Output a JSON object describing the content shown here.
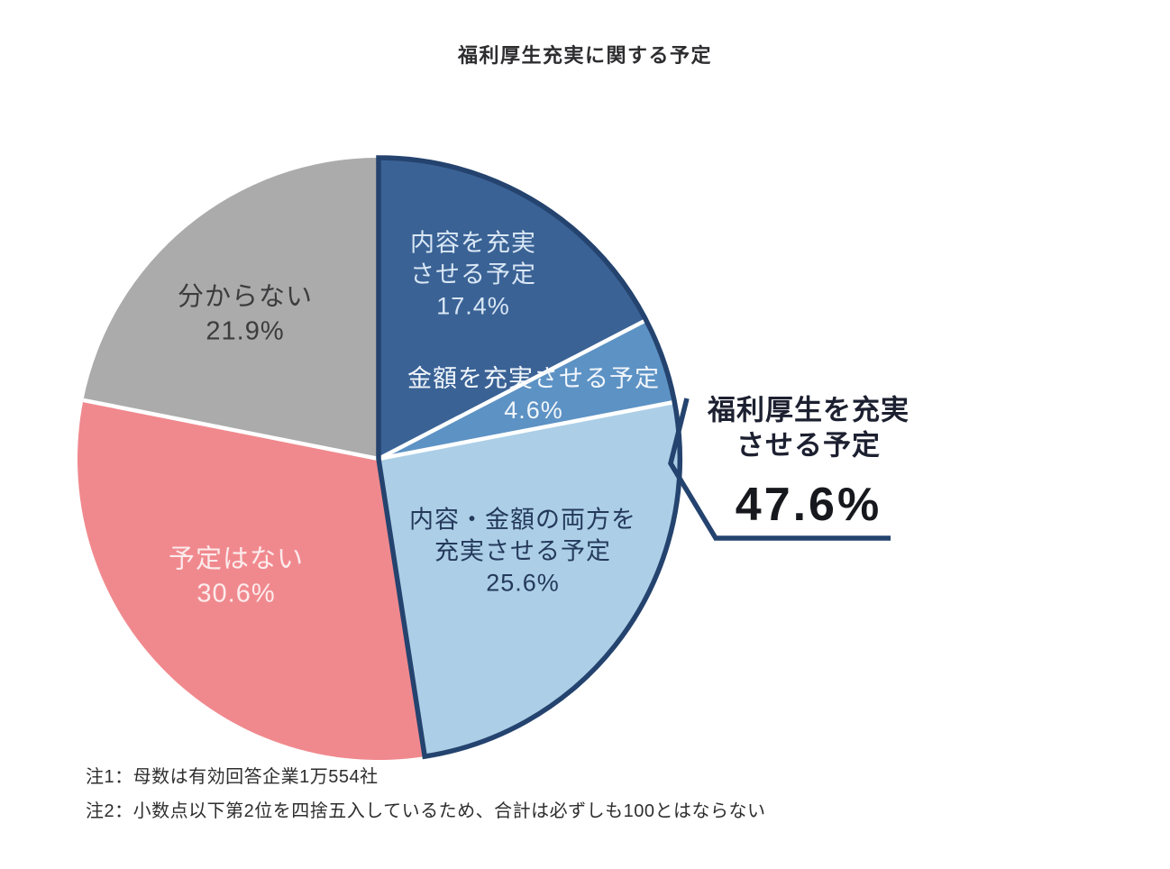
{
  "title": "福利厚生充実に関する予定",
  "chart_data": {
    "type": "pie",
    "title": "福利厚生充実に関する予定",
    "start_angle_deg": 0,
    "direction": "clockwise",
    "segments": [
      {
        "label": "内容を充実させる予定",
        "value": 17.4,
        "display": "内容を充実\nさせる予定\n17.4%",
        "color": "#3a6295",
        "text_color": "#d9e7f5"
      },
      {
        "label": "金額を充実させる予定",
        "value": 4.6,
        "display": "金額を充実させる予定\n4.6%",
        "color": "#5d92c4",
        "text_color": "#f2f7fc"
      },
      {
        "label": "内容・金額の両方を充実させる予定",
        "value": 25.6,
        "display": "内容・金額の両方を\n充実させる予定\n25.6%",
        "color": "#accfe7",
        "text_color": "#24395b"
      },
      {
        "label": "予定はない",
        "value": 30.6,
        "display": "予定はない\n30.6%",
        "color": "#f0898e",
        "text_color": "#fcebec"
      },
      {
        "label": "分からない",
        "value": 21.9,
        "display": "分からない\n21.9%",
        "color": "#ababab",
        "text_color": "#3c3c3e"
      }
    ],
    "divider_color": "#ffffff",
    "group_annotation": {
      "label": "福利厚生を充実\nさせる予定",
      "value": "47.6%",
      "covers_segments": [
        0,
        1,
        2
      ],
      "outline_color": "#24436e"
    },
    "legend_position": "none",
    "grid": false
  },
  "notes": [
    "注1：母数は有効回答企業1万554社",
    "注2：小数点以下第2位を四捨五入しているため、合計は必ずしも100とはならない"
  ]
}
